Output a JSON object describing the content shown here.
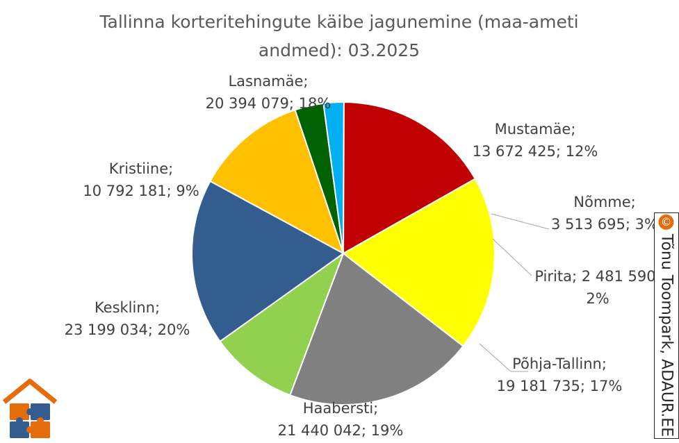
{
  "chart_data": {
    "type": "pie",
    "title_lines": [
      "Tallinna korteritehingute käibe jagunemine (maa-ameti",
      "andmed): 03.2025"
    ],
    "slices": [
      {
        "name": "Mustamäe",
        "value": 13672425,
        "percent": "12%",
        "color": "#ffc000",
        "label_lines": [
          "Mustamäe;",
          "13 672 425; 12%"
        ]
      },
      {
        "name": "Nõmme",
        "value": 3513695,
        "percent": "3%",
        "color": "#006100",
        "label_lines": [
          "Nõmme;",
          "3 513 695; 3%"
        ]
      },
      {
        "name": "Pirita",
        "value": 2481590,
        "percent": "2%",
        "color": "#00b0f0",
        "label_lines": [
          "Pirita; 2 481 590;",
          "2%"
        ]
      },
      {
        "name": "Põhja-Tallinn",
        "value": 19181735,
        "percent": "17%",
        "color": "#c00000",
        "label_lines": [
          "Põhja-Tallinn;",
          "19 181 735; 17%"
        ]
      },
      {
        "name": "Haabersti",
        "value": 21440042,
        "percent": "19%",
        "color": "#ffff00",
        "label_lines": [
          "Haabersti;",
          "21 440 042; 19%"
        ]
      },
      {
        "name": "Kesklinn",
        "value": 23199034,
        "percent": "20%",
        "color": "#808080",
        "label_lines": [
          "Kesklinn;",
          "23 199 034; 20%"
        ]
      },
      {
        "name": "Kristiine",
        "value": 10792181,
        "percent": "9%",
        "color": "#92d050",
        "label_lines": [
          "Kristiine;",
          "10 792 181; 9%"
        ]
      },
      {
        "name": "Lasnamäe",
        "value": 20394079,
        "percent": "18%",
        "color": "#335c8f",
        "label_lines": [
          "Lasnamäe;",
          "20 394 079; 18%"
        ]
      }
    ]
  },
  "watermark": {
    "symbol": "©",
    "text": "Tõnu Toompark, ADAUR.EE",
    "badge_color": "#e46c0a"
  },
  "logo": {
    "name": "house-puzzle-logo",
    "roof_color": "#e46c0a",
    "piece_colors": [
      "#e46c0a",
      "#335c8f",
      "#335c8f",
      "#e46c0a"
    ]
  }
}
